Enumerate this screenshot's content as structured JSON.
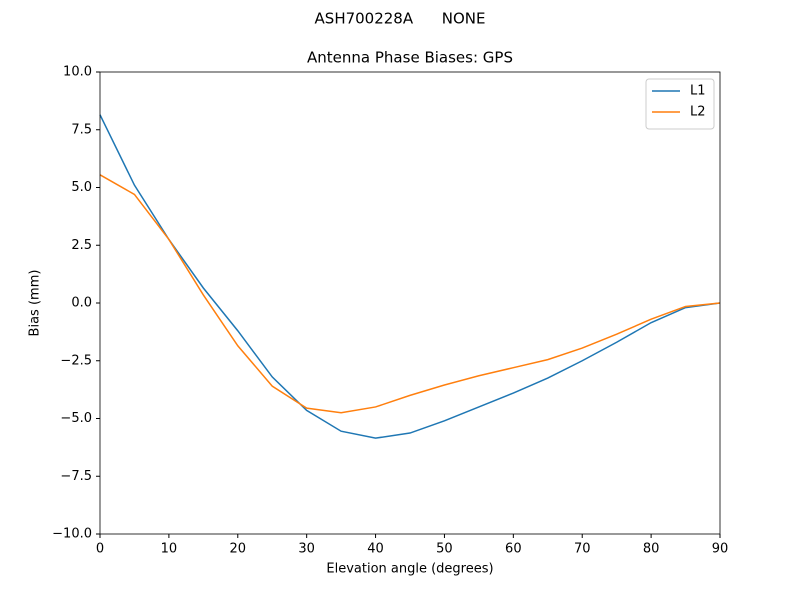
{
  "chart_data": {
    "type": "line",
    "suptitle": "ASH700228A      NONE",
    "title": "Antenna Phase Biases: GPS",
    "x_label": "Elevation angle (degrees)",
    "y_label": "Bias (mm)",
    "x": [
      0,
      5,
      10,
      15,
      20,
      25,
      30,
      35,
      40,
      45,
      50,
      55,
      60,
      65,
      70,
      75,
      80,
      85,
      90
    ],
    "series": [
      {
        "name": "L1",
        "color": "#1f77b4",
        "values": [
          8.15,
          5.1,
          2.75,
          0.65,
          -1.2,
          -3.2,
          -4.65,
          -5.55,
          -5.85,
          -5.63,
          -5.1,
          -4.5,
          -3.9,
          -3.25,
          -2.5,
          -1.7,
          -0.85,
          -0.2,
          0
        ]
      },
      {
        "name": "L2",
        "color": "#ff7f0e",
        "values": [
          5.55,
          4.7,
          2.75,
          0.35,
          -1.85,
          -3.6,
          -4.55,
          -4.75,
          -4.5,
          -4.0,
          -3.55,
          -3.15,
          -2.8,
          -2.45,
          -1.95,
          -1.35,
          -0.7,
          -0.15,
          0
        ]
      }
    ],
    "xlim": [
      0,
      90
    ],
    "ylim": [
      -10,
      10
    ],
    "xticks": [
      0,
      10,
      20,
      30,
      40,
      50,
      60,
      70,
      80,
      90
    ],
    "yticks": [
      {
        "value": -10,
        "label": "−10.0"
      },
      {
        "value": -7.5,
        "label": "−7.5"
      },
      {
        "value": -5,
        "label": "−5.0"
      },
      {
        "value": -2.5,
        "label": "−2.5"
      },
      {
        "value": 0,
        "label": "0.0"
      },
      {
        "value": 2.5,
        "label": "2.5"
      },
      {
        "value": 5,
        "label": "5.0"
      },
      {
        "value": 7.5,
        "label": "7.5"
      },
      {
        "value": 10,
        "label": "10.0"
      }
    ],
    "legend": "upper right"
  }
}
